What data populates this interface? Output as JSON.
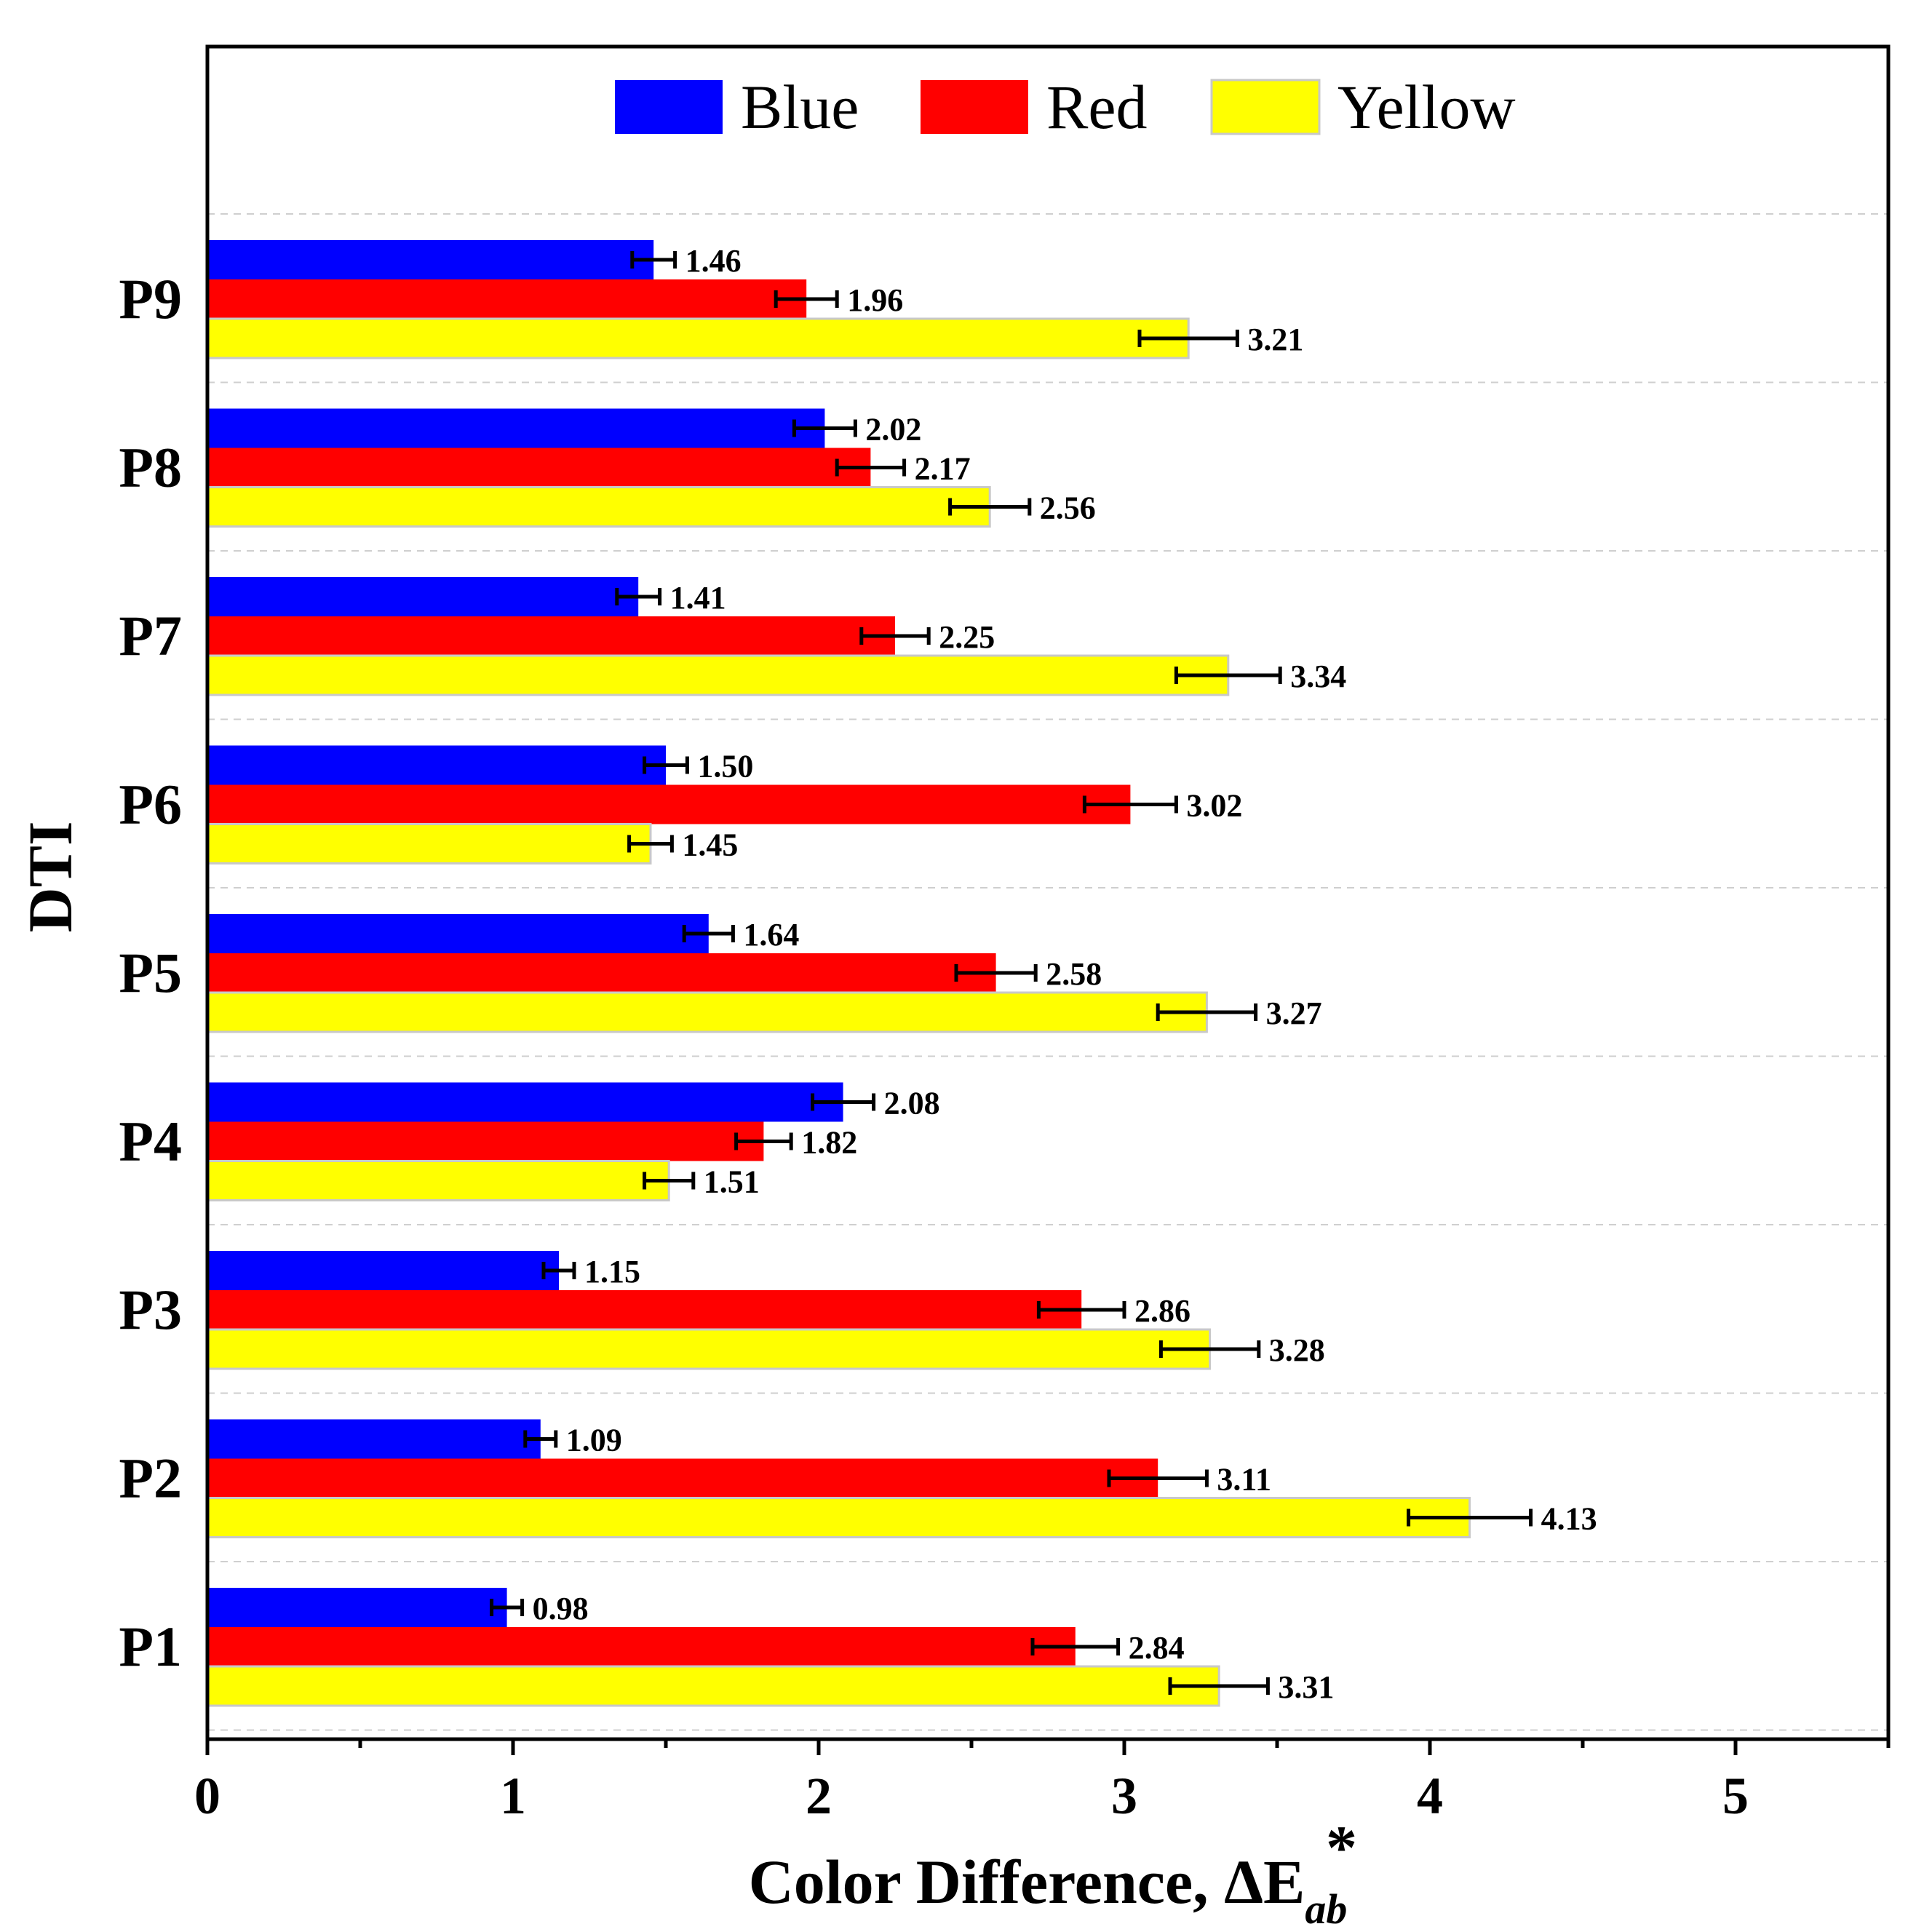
{
  "chart_data": {
    "type": "bar",
    "orientation": "horizontal",
    "categories": [
      "P1",
      "P2",
      "P3",
      "P4",
      "P5",
      "P6",
      "P7",
      "P8",
      "P9"
    ],
    "series": [
      {
        "name": "Blue",
        "color": "#0000ff",
        "values": [
          0.98,
          1.09,
          1.15,
          2.08,
          1.64,
          1.5,
          1.41,
          2.02,
          1.46
        ],
        "errors": [
          0.05,
          0.05,
          0.05,
          0.1,
          0.08,
          0.07,
          0.07,
          0.1,
          0.07
        ]
      },
      {
        "name": "Red",
        "color": "#ff0000",
        "values": [
          2.84,
          3.11,
          2.86,
          1.82,
          2.58,
          3.02,
          2.25,
          2.17,
          1.96
        ],
        "errors": [
          0.14,
          0.16,
          0.14,
          0.09,
          0.13,
          0.15,
          0.11,
          0.11,
          0.1
        ]
      },
      {
        "name": "Yellow",
        "color": "#ffff00",
        "values": [
          3.31,
          4.13,
          3.28,
          1.51,
          3.27,
          1.45,
          3.34,
          2.56,
          3.21
        ],
        "errors": [
          0.16,
          0.2,
          0.16,
          0.08,
          0.16,
          0.07,
          0.17,
          0.13,
          0.16
        ]
      }
    ],
    "data_labels": [
      [
        "0.98",
        "1.09",
        "1.15",
        "2.08",
        "1.64",
        "1.50",
        "1.41",
        "2.02",
        "1.46"
      ],
      [
        "2.84",
        "3.11",
        "2.86",
        "1.82",
        "2.58",
        "3.02",
        "2.25",
        "2.17",
        "1.96"
      ],
      [
        "3.31",
        "4.13",
        "3.28",
        "1.51",
        "3.27",
        "1.45",
        "3.34",
        "2.56",
        "3.21"
      ]
    ],
    "xlim": [
      0,
      5.5
    ],
    "xticks": [
      0,
      1,
      2,
      3,
      4,
      5
    ],
    "xtick_labels": [
      "0",
      "1",
      "2",
      "3",
      "4",
      "5"
    ],
    "xlabel": "Color Difference, ΔE",
    "xlabel_super": "*",
    "xlabel_sub": "ab",
    "ylabel": "DTI",
    "legend_position": "top",
    "grid": "horizontal dashed between categories"
  }
}
